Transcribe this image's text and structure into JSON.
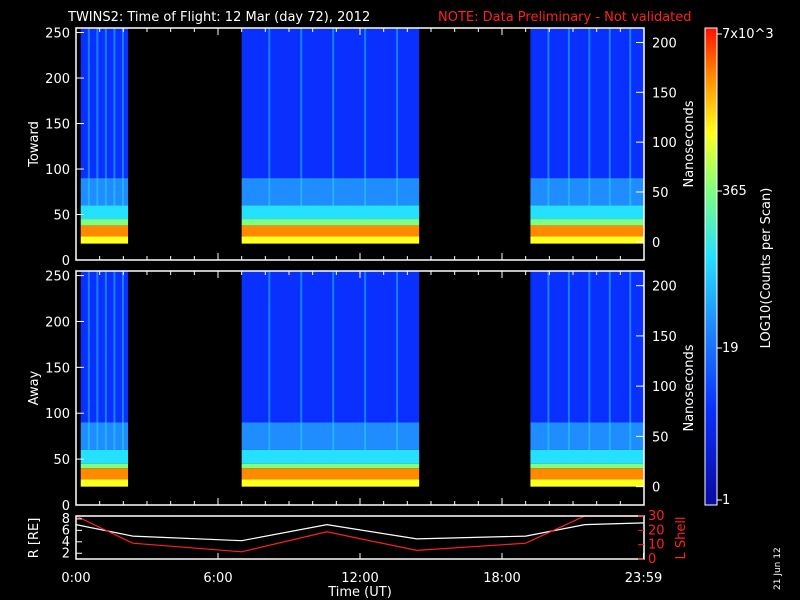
{
  "title": {
    "main": "TWINS2: Time of Flight: 12 Mar (day  72), 2012",
    "note": "NOTE: Data Preliminary - Not validated"
  },
  "date_stamp": "21 Jun 12",
  "colors": {
    "background": "#000000",
    "note": "#ff2020",
    "colorbar": [
      "#08087a",
      "#0a2cff",
      "#1f8cff",
      "#25e0ff",
      "#7fff7f",
      "#ffff20",
      "#ff8a00",
      "#ff1000"
    ]
  },
  "chart_data": [
    {
      "type": "heatmap",
      "panel": "toward",
      "ylabel": "Toward",
      "y2label": "Nanoseconds",
      "xlabel": "",
      "ylim": [
        0,
        255
      ],
      "yticks": [
        "0",
        "50",
        "100",
        "150",
        "200",
        "250"
      ],
      "y2ticks": [
        "0",
        "50",
        "100",
        "150",
        "200"
      ],
      "xlim_hours": [
        0,
        24
      ],
      "data_intervals_hours": [
        [
          0.2,
          2.2
        ],
        [
          7.0,
          14.5
        ],
        [
          19.2,
          24.0
        ]
      ],
      "peak_channel_range": [
        18,
        38
      ]
    },
    {
      "type": "heatmap",
      "panel": "away",
      "ylabel": "Away",
      "y2label": "Nanoseconds",
      "xlabel": "",
      "ylim": [
        0,
        255
      ],
      "yticks": [
        "0",
        "50",
        "100",
        "150",
        "200",
        "250"
      ],
      "y2ticks": [
        "0",
        "50",
        "100",
        "150",
        "200"
      ],
      "xlim_hours": [
        0,
        24
      ],
      "data_intervals_hours": [
        [
          0.2,
          2.2
        ],
        [
          7.0,
          14.5
        ],
        [
          19.2,
          24.0
        ]
      ],
      "peak_channel_range": [
        20,
        40
      ]
    },
    {
      "type": "line",
      "panel": "orbit",
      "ylabel_left": "R [RE]",
      "ylabel_right": "L Shell",
      "xlabel": "Time (UT)",
      "xticks": [
        "0:00",
        "6:00",
        "12:00",
        "18:00",
        "23:59"
      ],
      "yticks_left": [
        "2",
        "4",
        "6",
        "8"
      ],
      "yticks_right": [
        "0",
        "10",
        "20",
        "30"
      ],
      "ylim_left": [
        1,
        8.5
      ],
      "ylim_right": [
        0,
        30
      ],
      "x_hours": [
        0,
        2.4,
        7.0,
        10.6,
        14.4,
        19.0,
        21.5,
        24.0
      ],
      "series": [
        {
          "name": "R",
          "axis": "left",
          "color": "#ffffff",
          "values": [
            7.0,
            5.0,
            4.2,
            7.0,
            4.5,
            5.0,
            7.0,
            7.3
          ]
        },
        {
          "name": "L Shell",
          "axis": "right",
          "color": "#ff2020",
          "values": [
            30,
            11,
            5,
            19,
            6,
            11,
            30,
            30
          ]
        }
      ]
    }
  ],
  "colorbar": {
    "label": "LOG10(Counts per Scan)",
    "ticks": [
      "7x10^3",
      "365",
      "19",
      "1"
    ]
  }
}
